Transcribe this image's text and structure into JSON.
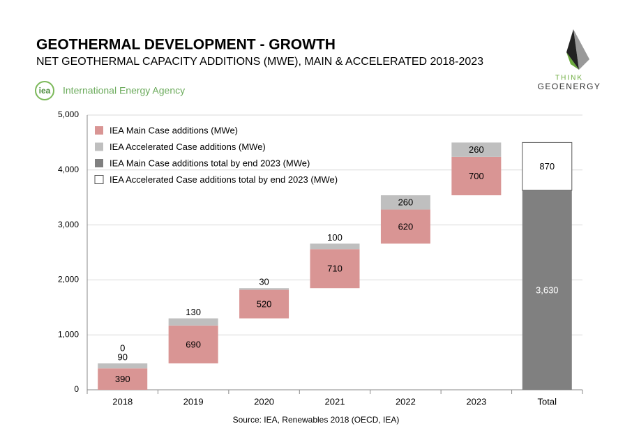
{
  "chart_data": {
    "type": "waterfall",
    "title": "GEOTHERMAL DEVELOPMENT - GROWTH",
    "subtitle": "NET GEOTHERMAL CAPACITY ADDITIONS (MWE), MAIN & ACCELERATED 2018-2023",
    "source": "Source: IEA, Renewables 2018 (OECD, IEA)",
    "categories": [
      "2018",
      "2019",
      "2020",
      "2021",
      "2022",
      "2023",
      "Total"
    ],
    "series": [
      {
        "name": "IEA Main Case additions (MWe)",
        "color": "#d99594",
        "values": [
          390,
          690,
          520,
          710,
          620,
          700,
          null
        ]
      },
      {
        "name": "IEA Accelerated Case additions (MWe)",
        "color": "#bfbfbf",
        "values": [
          90,
          130,
          30,
          100,
          260,
          260,
          null
        ]
      },
      {
        "name": "IEA Main Case additions total by end 2023 (MWe)",
        "color": "#808080",
        "values": [
          0,
          null,
          null,
          null,
          null,
          null,
          3630
        ],
        "value_labels": [
          "0",
          null,
          null,
          null,
          null,
          null,
          "3,630"
        ]
      },
      {
        "name": "IEA Accelerated Case additions total by end 2023 (MWe)",
        "color": "#ffffff",
        "values": [
          null,
          null,
          null,
          null,
          null,
          null,
          870
        ]
      }
    ],
    "ylim": [
      0,
      5000
    ],
    "yticks": [
      0,
      {
        "value": 1000,
        "label": "1,000"
      },
      {
        "value": 2000,
        "label": "2,000"
      },
      {
        "value": 3000,
        "label": "3,000"
      },
      {
        "value": 4000,
        "label": "4,000"
      },
      {
        "value": 5000,
        "label": "5,000"
      }
    ],
    "grid": true
  },
  "logos": {
    "iea_mark": "iea",
    "iea_name": "International Energy Agency",
    "brand_top": "THINK",
    "brand_bottom": "GEOENERGY"
  }
}
